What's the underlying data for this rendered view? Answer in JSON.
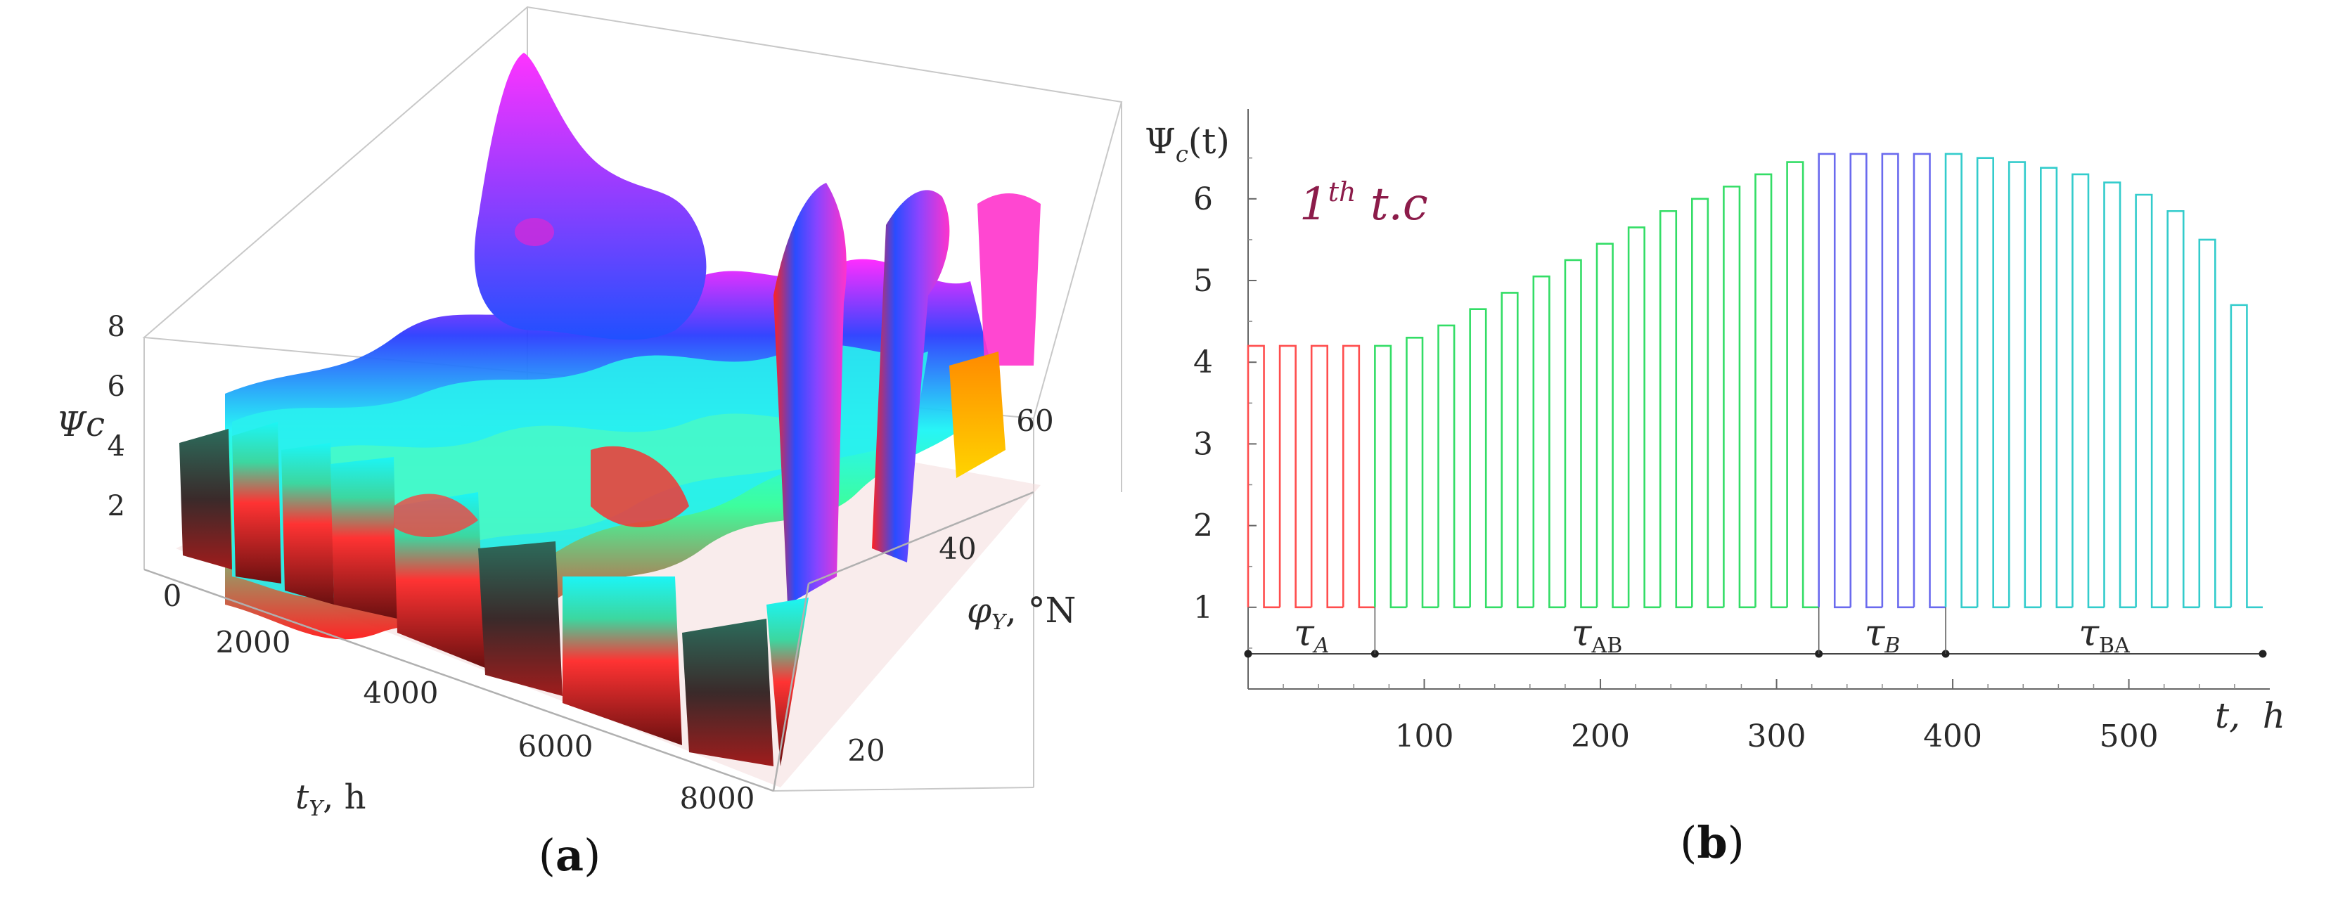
{
  "chart_data": [
    {
      "type": "surface3d",
      "panel_label": "a",
      "z_axis": {
        "label": "Ψc",
        "ticks": [
          "2",
          "4",
          "6",
          "8"
        ],
        "range": [
          0,
          8
        ]
      },
      "x_axis": {
        "label_main": "t",
        "label_sub": "Y",
        "label_unit": ", h",
        "ticks": [
          "0",
          "2000",
          "4000",
          "6000",
          "8000"
        ],
        "range": [
          0,
          8760
        ]
      },
      "y_axis": {
        "label_main": "φ",
        "label_sub": "Y",
        "label_unit": ", °N",
        "ticks": [
          "20",
          "40",
          "60"
        ],
        "range": [
          10,
          70
        ]
      },
      "colormap": [
        "#ff1a1a",
        "#3dff9a",
        "#1cf5f5",
        "#1e2cff",
        "#ff00ff",
        "#ffa500"
      ]
    },
    {
      "type": "line",
      "panel_label": "b",
      "ylabel_main": "Ψ",
      "ylabel_sub": "c",
      "ylabel_arg": "(t)",
      "xlabel_main": "t",
      "xlabel_unit": "h",
      "annotation": {
        "main": "1",
        "sup": "th",
        "rest": " t.c"
      },
      "xlim": [
        0,
        580
      ],
      "ylim": [
        0,
        7.1
      ],
      "x_ticks": [
        100,
        200,
        300,
        400,
        500
      ],
      "y_ticks": [
        1,
        2,
        3,
        4,
        5,
        6
      ],
      "series": [
        {
          "name": "τA",
          "color": "#ff4d4d",
          "cycles": [
            {
              "start": 0,
              "peak": 4.2
            },
            {
              "start": 18,
              "peak": 4.2
            },
            {
              "start": 36,
              "peak": 4.2
            },
            {
              "start": 54,
              "peak": 4.2
            }
          ]
        },
        {
          "name": "τAB",
          "color": "#33dd66",
          "cycles": [
            {
              "start": 72,
              "peak": 4.2
            },
            {
              "start": 90,
              "peak": 4.3
            },
            {
              "start": 108,
              "peak": 4.45
            },
            {
              "start": 126,
              "peak": 4.65
            },
            {
              "start": 144,
              "peak": 4.85
            },
            {
              "start": 162,
              "peak": 5.05
            },
            {
              "start": 180,
              "peak": 5.25
            },
            {
              "start": 198,
              "peak": 5.45
            },
            {
              "start": 216,
              "peak": 5.65
            },
            {
              "start": 234,
              "peak": 5.85
            },
            {
              "start": 252,
              "peak": 6.0
            },
            {
              "start": 270,
              "peak": 6.15
            },
            {
              "start": 288,
              "peak": 6.3
            },
            {
              "start": 306,
              "peak": 6.45
            }
          ]
        },
        {
          "name": "τB",
          "color": "#6a6aee",
          "cycles": [
            {
              "start": 324,
              "peak": 6.55
            },
            {
              "start": 342,
              "peak": 6.55
            },
            {
              "start": 360,
              "peak": 6.55
            },
            {
              "start": 378,
              "peak": 6.55
            }
          ]
        },
        {
          "name": "τBA",
          "color": "#33cccc",
          "cycles": [
            {
              "start": 396,
              "peak": 6.55
            },
            {
              "start": 414,
              "peak": 6.5
            },
            {
              "start": 432,
              "peak": 6.45
            },
            {
              "start": 450,
              "peak": 6.38
            },
            {
              "start": 468,
              "peak": 6.3
            },
            {
              "start": 486,
              "peak": 6.2
            },
            {
              "start": 504,
              "peak": 6.05
            },
            {
              "start": 522,
              "peak": 5.85
            },
            {
              "start": 540,
              "peak": 5.5
            },
            {
              "start": 558,
              "peak": 4.7
            }
          ]
        }
      ],
      "baseline": 1,
      "cycle_period": 18,
      "segments": [
        {
          "label_main": "τ",
          "label_sub": "A",
          "from": 0,
          "to": 72
        },
        {
          "label_main": "τ",
          "label_sub": "AB",
          "from": 72,
          "to": 324
        },
        {
          "label_main": "τ",
          "label_sub": "B",
          "from": 324,
          "to": 396
        },
        {
          "label_main": "τ",
          "label_sub": "BA",
          "from": 396,
          "to": 576
        }
      ]
    }
  ]
}
